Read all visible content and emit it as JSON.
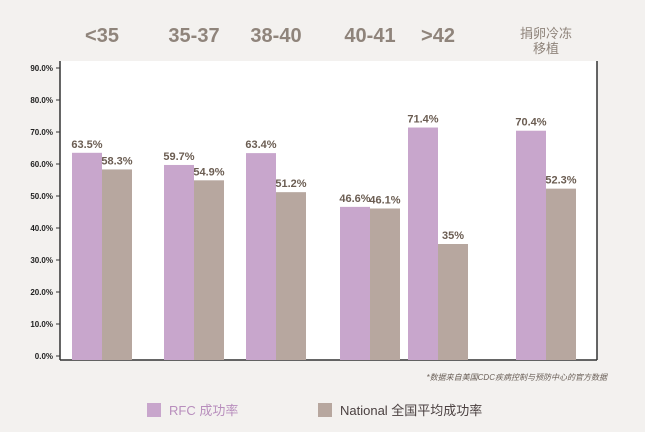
{
  "chart_data": {
    "type": "bar",
    "categories": [
      "<35",
      "35-37",
      "38-40",
      "40-41",
      ">42",
      "捐卵冷冻\n移植"
    ],
    "series": [
      {
        "name": "RFC 成功率",
        "values": [
          63.5,
          59.7,
          63.4,
          46.6,
          71.4,
          70.4
        ],
        "value_labels": [
          "63.5%",
          "59.7%",
          "63.4%",
          "46.6%",
          "71.4%",
          "70.4%"
        ],
        "color": "#c8a6cc"
      },
      {
        "name": "National 全国平均成功率",
        "values": [
          58.3,
          54.9,
          51.2,
          46.1,
          35,
          52.3
        ],
        "value_labels": [
          "58.3%",
          "54.9%",
          "51.2%",
          "46.1%",
          "35%",
          "52.3%"
        ],
        "color": "#b7a79f"
      }
    ],
    "y_ticks": [
      "0.0%",
      "10.0%",
      "20.0%",
      "30.0%",
      "40.0%",
      "50.0%",
      "60.0%",
      "70.0%",
      "80.0%",
      "90.0%"
    ],
    "ylim": [
      0,
      90
    ],
    "grid": false,
    "legend_position": "bottom",
    "footnote": "*数据来自美国CDC疾病控制与预防中心的官方数据"
  },
  "colors": {
    "background": "#f3f1ef",
    "plot_background": "#ffffff",
    "axis": "#333333",
    "category_label": "#8f847b",
    "value_label": "#6b5d52",
    "rfc_legend_text": "#b88ebd",
    "national_legend_text": "#4a4040"
  }
}
